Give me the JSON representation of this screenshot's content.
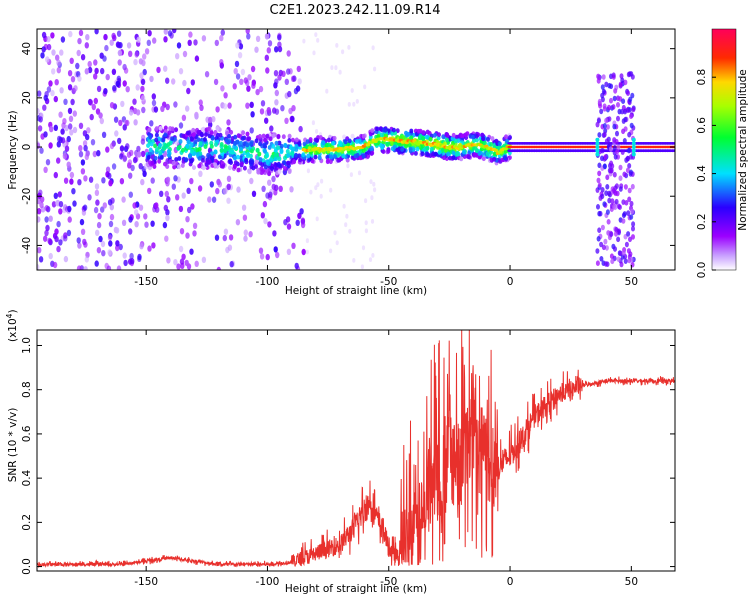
{
  "title": "C2E1.2023.242.11.09.R14",
  "chart_data": [
    {
      "type": "heatmap",
      "xlabel": "Height of straight line (km)",
      "ylabel": "Frequency (Hz)",
      "xlim": [
        -195,
        68
      ],
      "ylim": [
        -50,
        48
      ],
      "xticks": [
        -150,
        -100,
        -50,
        0,
        50
      ],
      "yticks": [
        -40,
        -20,
        0,
        20,
        40
      ],
      "colorbar": {
        "label": "Normalized spectral amplitude",
        "ticks": [
          "0.0",
          "0.2",
          "0.4",
          "0.6",
          "0.8"
        ],
        "range": [
          0,
          1
        ],
        "colors": [
          "#ffffff",
          "#9b00ff",
          "#2a00ff",
          "#00e0ff",
          "#00ff30",
          "#a8ff00",
          "#ffd800",
          "#ff2a00",
          "#ff005a"
        ]
      },
      "ridge": {
        "x": [
          -150,
          -140,
          -130,
          -120,
          -110,
          -100,
          -90,
          -80,
          -70,
          -60,
          -55,
          -50,
          -40,
          -30,
          -25,
          -20,
          -15,
          -10,
          -5,
          0,
          10,
          20,
          30,
          40,
          50,
          60,
          68
        ],
        "y": [
          0,
          0,
          -1,
          0,
          -2,
          -3,
          -2,
          -1,
          -1,
          0,
          3,
          3,
          2,
          1,
          0,
          0,
          1,
          0,
          -2,
          0,
          0,
          0,
          0,
          0,
          0,
          0,
          0
        ]
      },
      "gap_regions": [
        [
          -5,
          2
        ],
        [
          30,
          36
        ],
        [
          52,
          68
        ]
      ]
    },
    {
      "type": "line",
      "xlabel": "Height of straight line (km)",
      "ylabel": "SNR (10 * v/v)",
      "yscale_label": "(x10",
      "yscale_exp": "4",
      "xlim": [
        -195,
        68
      ],
      "ylim": [
        -0.02,
        1.07
      ],
      "xticks": [
        -150,
        -100,
        -50,
        0,
        50
      ],
      "yticks": [
        "0.0",
        "0.2",
        "0.4",
        "0.6",
        "0.8",
        "1.0"
      ],
      "series": [
        {
          "color": "#e8302c",
          "x": [
            -195,
            -160,
            -140,
            -120,
            -100,
            -90,
            -80,
            -70,
            -64,
            -60,
            -57,
            -55,
            -52,
            -50,
            -46,
            -42,
            -40,
            -36,
            -32,
            -28,
            -25,
            -22,
            -20,
            -15,
            -10,
            -5,
            0,
            5,
            10,
            20,
            30,
            40,
            50,
            60,
            68
          ],
          "y": [
            0.01,
            0.01,
            0.04,
            0.01,
            0.01,
            0.02,
            0.06,
            0.1,
            0.18,
            0.26,
            0.3,
            0.22,
            0.16,
            0.08,
            0.04,
            0.06,
            0.12,
            0.2,
            0.45,
            0.35,
            0.55,
            0.4,
            0.52,
            0.55,
            0.5,
            0.45,
            0.5,
            0.58,
            0.68,
            0.78,
            0.82,
            0.84,
            0.84,
            0.84,
            0.84
          ]
        }
      ]
    }
  ]
}
